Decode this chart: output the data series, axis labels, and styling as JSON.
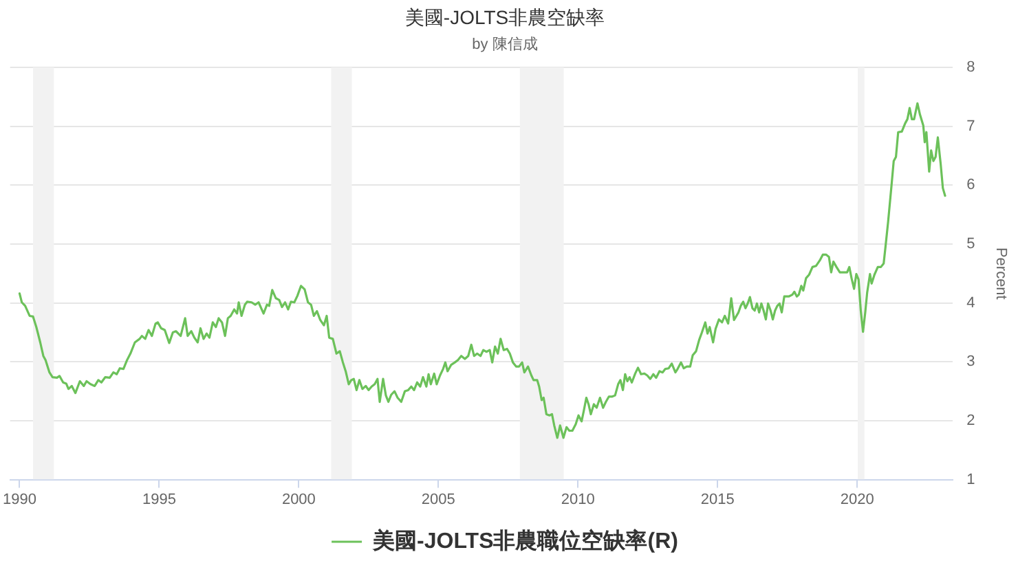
{
  "chart_data": {
    "type": "line",
    "title": "美國-JOLTS非農空缺率",
    "subtitle": "by 陳信成",
    "ylabel": "Percent",
    "x": [
      1990.0,
      1990.08,
      1990.2,
      1990.36,
      1990.48,
      1990.6,
      1990.74,
      1990.85,
      1990.93,
      1991.07,
      1991.18,
      1991.34,
      1991.43,
      1991.56,
      1991.67,
      1991.75,
      1991.87,
      1992.0,
      1992.16,
      1992.3,
      1992.4,
      1992.54,
      1992.69,
      1992.82,
      1992.93,
      1993.07,
      1993.23,
      1993.36,
      1993.48,
      1993.59,
      1993.72,
      1993.85,
      1993.97,
      1994.13,
      1994.3,
      1994.38,
      1994.5,
      1994.62,
      1994.74,
      1994.87,
      1994.95,
      1995.07,
      1995.2,
      1995.36,
      1995.49,
      1995.6,
      1995.77,
      1995.93,
      1996.02,
      1996.15,
      1996.26,
      1996.38,
      1996.48,
      1996.59,
      1996.7,
      1996.8,
      1996.92,
      1997.03,
      1997.13,
      1997.25,
      1997.36,
      1997.46,
      1997.56,
      1997.69,
      1997.79,
      1997.85,
      1997.95,
      1998.07,
      1998.15,
      1998.31,
      1998.44,
      1998.56,
      1998.74,
      1998.86,
      1998.94,
      1999.05,
      1999.18,
      1999.3,
      1999.4,
      1999.51,
      1999.62,
      1999.72,
      1999.84,
      1999.95,
      2000.08,
      2000.21,
      2000.33,
      2000.44,
      2000.54,
      2000.65,
      2000.77,
      2000.9,
      2001.0,
      2001.09,
      2001.22,
      2001.35,
      2001.47,
      2001.58,
      2001.68,
      2001.79,
      2001.88,
      2001.97,
      2002.07,
      2002.17,
      2002.28,
      2002.4,
      2002.5,
      2002.61,
      2002.72,
      2002.82,
      2002.9,
      2003.02,
      2003.12,
      2003.21,
      2003.31,
      2003.43,
      2003.54,
      2003.67,
      2003.8,
      2003.92,
      2004.03,
      2004.13,
      2004.24,
      2004.35,
      2004.45,
      2004.57,
      2004.65,
      2004.73,
      2004.85,
      2004.94,
      2005.06,
      2005.17,
      2005.25,
      2005.33,
      2005.46,
      2005.59,
      2005.7,
      2005.82,
      2005.95,
      2006.07,
      2006.18,
      2006.28,
      2006.39,
      2006.51,
      2006.61,
      2006.72,
      2006.84,
      2006.93,
      2007.03,
      2007.13,
      2007.23,
      2007.34,
      2007.46,
      2007.56,
      2007.67,
      2007.79,
      2007.89,
      2008.0,
      2008.08,
      2008.21,
      2008.33,
      2008.41,
      2008.54,
      2008.61,
      2008.7,
      2008.77,
      2008.87,
      2008.98,
      2009.07,
      2009.15,
      2009.26,
      2009.36,
      2009.48,
      2009.59,
      2009.69,
      2009.8,
      2009.92,
      2010.02,
      2010.13,
      2010.21,
      2010.3,
      2010.38,
      2010.46,
      2010.57,
      2010.67,
      2010.79,
      2010.9,
      2011.0,
      2011.11,
      2011.23,
      2011.33,
      2011.44,
      2011.52,
      2011.61,
      2011.69,
      2011.77,
      2011.85,
      2011.93,
      2012.05,
      2012.15,
      2012.26,
      2012.38,
      2012.48,
      2012.59,
      2012.7,
      2012.8,
      2012.92,
      2013.03,
      2013.13,
      2013.25,
      2013.36,
      2013.49,
      2013.57,
      2013.69,
      2013.79,
      2013.9,
      2014.02,
      2014.11,
      2014.23,
      2014.34,
      2014.44,
      2014.56,
      2014.64,
      2014.72,
      2014.84,
      2014.93,
      2015.05,
      2015.16,
      2015.26,
      2015.38,
      2015.49,
      2015.59,
      2015.75,
      2015.83,
      2015.92,
      2016.0,
      2016.08,
      2016.16,
      2016.25,
      2016.33,
      2016.41,
      2016.49,
      2016.57,
      2016.65,
      2016.73,
      2016.81,
      2016.9,
      2016.98,
      2017.06,
      2017.14,
      2017.22,
      2017.3,
      2017.39,
      2017.55,
      2017.68,
      2017.75,
      2017.84,
      2017.91,
      2018.0,
      2018.07,
      2018.17,
      2018.28,
      2018.4,
      2018.53,
      2018.66,
      2018.77,
      2018.89,
      2018.99,
      2019.07,
      2019.15,
      2019.26,
      2019.38,
      2019.51,
      2019.64,
      2019.72,
      2019.8,
      2019.89,
      2019.97,
      2020.05,
      2020.13,
      2020.21,
      2020.29,
      2020.36,
      2020.46,
      2020.52,
      2020.62,
      2020.74,
      2020.85,
      2020.95,
      2021.01,
      2021.11,
      2021.23,
      2021.31,
      2021.39,
      2021.47,
      2021.6,
      2021.72,
      2021.8,
      2021.88,
      2021.96,
      2022.04,
      2022.16,
      2022.25,
      2022.37,
      2022.42,
      2022.48,
      2022.58,
      2022.65,
      2022.73,
      2022.81,
      2022.89,
      2022.99,
      2023.07,
      2023.15
    ],
    "series": [
      {
        "name": "美國-JOLTS非農職位空缺率(R)",
        "color": "#6cc15a",
        "values": [
          4.16,
          4.01,
          3.95,
          3.78,
          3.77,
          3.59,
          3.33,
          3.1,
          3.03,
          2.82,
          2.74,
          2.73,
          2.76,
          2.65,
          2.63,
          2.54,
          2.59,
          2.47,
          2.67,
          2.59,
          2.67,
          2.62,
          2.59,
          2.69,
          2.65,
          2.74,
          2.73,
          2.82,
          2.79,
          2.89,
          2.88,
          3.03,
          3.14,
          3.33,
          3.39,
          3.44,
          3.39,
          3.54,
          3.44,
          3.65,
          3.67,
          3.57,
          3.54,
          3.32,
          3.5,
          3.52,
          3.44,
          3.74,
          3.44,
          3.52,
          3.41,
          3.33,
          3.57,
          3.39,
          3.48,
          3.41,
          3.67,
          3.59,
          3.74,
          3.67,
          3.44,
          3.74,
          3.78,
          3.89,
          3.82,
          4.01,
          3.78,
          3.97,
          4.02,
          4.01,
          3.97,
          4.01,
          3.82,
          3.97,
          3.95,
          4.22,
          4.08,
          4.05,
          3.93,
          4.01,
          3.89,
          4.02,
          4.01,
          4.12,
          4.29,
          4.23,
          4.01,
          3.97,
          3.78,
          3.86,
          3.71,
          3.62,
          3.78,
          3.41,
          3.39,
          3.14,
          3.18,
          2.99,
          2.84,
          2.62,
          2.69,
          2.71,
          2.52,
          2.69,
          2.54,
          2.59,
          2.52,
          2.58,
          2.62,
          2.71,
          2.32,
          2.71,
          2.43,
          2.32,
          2.44,
          2.5,
          2.39,
          2.32,
          2.5,
          2.52,
          2.58,
          2.52,
          2.65,
          2.58,
          2.74,
          2.58,
          2.79,
          2.62,
          2.8,
          2.62,
          2.77,
          2.88,
          2.99,
          2.84,
          2.95,
          2.99,
          3.03,
          3.1,
          3.05,
          3.1,
          3.29,
          3.1,
          3.14,
          3.1,
          3.2,
          3.17,
          3.2,
          2.99,
          3.26,
          3.14,
          3.39,
          3.2,
          3.22,
          3.14,
          2.99,
          2.92,
          2.92,
          2.99,
          2.82,
          2.92,
          2.77,
          2.69,
          2.69,
          2.58,
          2.35,
          2.39,
          2.11,
          2.09,
          2.11,
          1.92,
          1.71,
          1.92,
          1.71,
          1.89,
          1.83,
          1.83,
          1.94,
          2.09,
          1.99,
          2.17,
          2.39,
          2.28,
          2.11,
          2.28,
          2.22,
          2.39,
          2.22,
          2.32,
          2.41,
          2.41,
          2.43,
          2.62,
          2.69,
          2.52,
          2.79,
          2.67,
          2.74,
          2.65,
          2.8,
          2.9,
          2.79,
          2.8,
          2.77,
          2.71,
          2.79,
          2.73,
          2.84,
          2.82,
          2.88,
          2.89,
          2.97,
          2.82,
          2.88,
          2.99,
          2.89,
          2.92,
          2.92,
          3.11,
          3.18,
          3.37,
          3.5,
          3.67,
          3.48,
          3.59,
          3.33,
          3.56,
          3.72,
          3.67,
          3.78,
          3.65,
          4.08,
          3.71,
          3.84,
          3.95,
          4.02,
          3.91,
          3.99,
          4.1,
          3.91,
          3.87,
          3.99,
          3.84,
          3.99,
          3.87,
          3.72,
          3.99,
          3.87,
          3.72,
          3.87,
          3.95,
          3.99,
          3.84,
          4.11,
          4.11,
          4.14,
          4.19,
          4.11,
          4.14,
          4.29,
          4.21,
          4.42,
          4.48,
          4.61,
          4.63,
          4.72,
          4.82,
          4.82,
          4.78,
          4.52,
          4.7,
          4.61,
          4.52,
          4.52,
          4.52,
          4.61,
          4.42,
          4.24,
          4.49,
          4.4,
          3.87,
          3.51,
          3.84,
          4.18,
          4.49,
          4.33,
          4.48,
          4.61,
          4.61,
          4.67,
          4.93,
          5.38,
          5.99,
          6.41,
          6.48,
          6.9,
          6.91,
          7.05,
          7.12,
          7.31,
          7.12,
          7.12,
          7.39,
          7.2,
          7.01,
          6.73,
          6.9,
          6.23,
          6.59,
          6.41,
          6.48,
          6.81,
          6.37,
          5.95,
          5.82
        ]
      }
    ],
    "xlim": [
      1989.66,
      2023.43
    ],
    "xticks": [
      1990,
      1995,
      2000,
      2005,
      2010,
      2015,
      2020
    ],
    "ylim": [
      1,
      8
    ],
    "yticks": [
      1,
      2,
      3,
      4,
      5,
      6,
      7,
      8
    ],
    "bands": [
      {
        "axis": "x",
        "from": 1990.48,
        "to": 1991.23,
        "color": "#f2f2f2"
      },
      {
        "axis": "x",
        "from": 2001.16,
        "to": 2001.9,
        "color": "#f2f2f2"
      },
      {
        "axis": "x",
        "from": 2007.92,
        "to": 2009.49,
        "color": "#f2f2f2"
      },
      {
        "axis": "x",
        "from": 2020.02,
        "to": 2020.26,
        "color": "#f2f2f2"
      }
    ],
    "grid": "y",
    "legend": "bottom",
    "marker": "none",
    "line_style": "solid"
  }
}
